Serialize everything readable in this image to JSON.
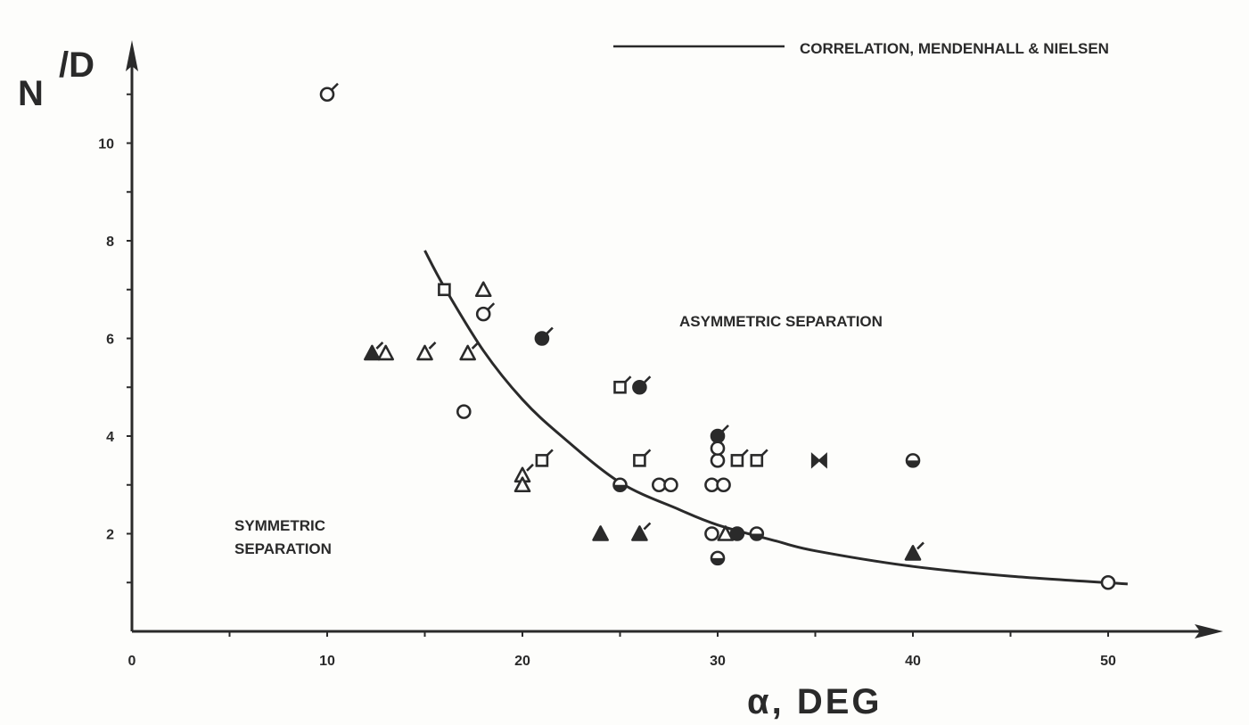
{
  "chart_data": {
    "type": "scatter",
    "title": "",
    "xlabel": "α, DEG",
    "ylabel_main": "N",
    "ylabel_sub": "/D",
    "xlim": [
      0,
      55
    ],
    "ylim": [
      0,
      11.5
    ],
    "xticks": [
      0,
      10,
      20,
      30,
      40,
      50
    ],
    "yticks": [
      2,
      4,
      6,
      8,
      10
    ],
    "grid": false,
    "legend": {
      "placement": "top-right",
      "entries": [
        {
          "label": "CORRELATION, MENDENHALL & NIELSEN",
          "style": "line"
        }
      ]
    },
    "annotations": [
      {
        "text": "ASYMMETRIC SEPARATION"
      },
      {
        "text": "SYMMETRIC"
      },
      {
        "text": "SEPARATION"
      }
    ],
    "curve": {
      "name": "CORRELATION, MENDENHALL & NIELSEN",
      "x": [
        15,
        16,
        18,
        20,
        22,
        25,
        28,
        30,
        33,
        35,
        40,
        45,
        51
      ],
      "y": [
        7.8,
        7.05,
        5.75,
        4.75,
        4.0,
        3.05,
        2.5,
        2.18,
        1.85,
        1.65,
        1.33,
        1.13,
        0.97
      ]
    },
    "points": [
      {
        "x": 10,
        "y": 11,
        "symbol": "open-circle",
        "flag": true
      },
      {
        "x": 16,
        "y": 7,
        "symbol": "open-square",
        "flag": false
      },
      {
        "x": 18,
        "y": 7,
        "symbol": "open-triangle",
        "flag": false
      },
      {
        "x": 18,
        "y": 6.5,
        "symbol": "open-circle",
        "flag": true
      },
      {
        "x": 21,
        "y": 6,
        "symbol": "filled-circle",
        "flag": true
      },
      {
        "x": 12.3,
        "y": 5.7,
        "symbol": "filled-triangle",
        "flag": true
      },
      {
        "x": 13,
        "y": 5.7,
        "symbol": "open-triangle",
        "flag": false
      },
      {
        "x": 15,
        "y": 5.7,
        "symbol": "open-triangle",
        "flag": true
      },
      {
        "x": 17.2,
        "y": 5.7,
        "symbol": "open-triangle",
        "flag": true
      },
      {
        "x": 17,
        "y": 4.5,
        "symbol": "open-circle",
        "flag": false
      },
      {
        "x": 25,
        "y": 5,
        "symbol": "open-square",
        "flag": true
      },
      {
        "x": 26,
        "y": 5,
        "symbol": "filled-circle",
        "flag": true
      },
      {
        "x": 30,
        "y": 4,
        "symbol": "filled-circle",
        "flag": true
      },
      {
        "x": 21,
        "y": 3.5,
        "symbol": "open-square",
        "flag": true
      },
      {
        "x": 20,
        "y": 3.2,
        "symbol": "open-triangle",
        "flag": true
      },
      {
        "x": 20,
        "y": 3,
        "symbol": "open-triangle",
        "flag": false
      },
      {
        "x": 26,
        "y": 3.5,
        "symbol": "open-square",
        "flag": true
      },
      {
        "x": 25,
        "y": 3,
        "symbol": "half-circle",
        "flag": false
      },
      {
        "x": 27,
        "y": 3,
        "symbol": "open-circle",
        "flag": false
      },
      {
        "x": 27.6,
        "y": 3,
        "symbol": "open-circle",
        "flag": false
      },
      {
        "x": 29.7,
        "y": 3,
        "symbol": "open-circle",
        "flag": false
      },
      {
        "x": 30.3,
        "y": 3,
        "symbol": "open-circle",
        "flag": false
      },
      {
        "x": 30,
        "y": 3.5,
        "symbol": "open-circle",
        "flag": false
      },
      {
        "x": 30,
        "y": 3.75,
        "symbol": "open-circle",
        "flag": false
      },
      {
        "x": 31,
        "y": 3.5,
        "symbol": "open-square",
        "flag": true
      },
      {
        "x": 32,
        "y": 3.5,
        "symbol": "open-square",
        "flag": true
      },
      {
        "x": 35.2,
        "y": 3.5,
        "symbol": "bowtie",
        "flag": false
      },
      {
        "x": 40,
        "y": 3.5,
        "symbol": "half-circle",
        "flag": false
      },
      {
        "x": 24,
        "y": 2,
        "symbol": "filled-triangle",
        "flag": false
      },
      {
        "x": 26,
        "y": 2,
        "symbol": "filled-triangle",
        "flag": true
      },
      {
        "x": 29.7,
        "y": 2,
        "symbol": "open-circle",
        "flag": false
      },
      {
        "x": 30.4,
        "y": 2,
        "symbol": "open-triangle",
        "flag": false
      },
      {
        "x": 31,
        "y": 2,
        "symbol": "filled-circle",
        "flag": false
      },
      {
        "x": 32,
        "y": 2,
        "symbol": "half-circle",
        "flag": false
      },
      {
        "x": 30,
        "y": 1.5,
        "symbol": "half-circle",
        "flag": false
      },
      {
        "x": 40,
        "y": 1.6,
        "symbol": "filled-triangle",
        "flag": true
      },
      {
        "x": 50,
        "y": 1,
        "symbol": "open-circle",
        "flag": false
      }
    ]
  },
  "colors": {
    "ink": "#2a2a2a",
    "paper": "#fdfdfb"
  }
}
